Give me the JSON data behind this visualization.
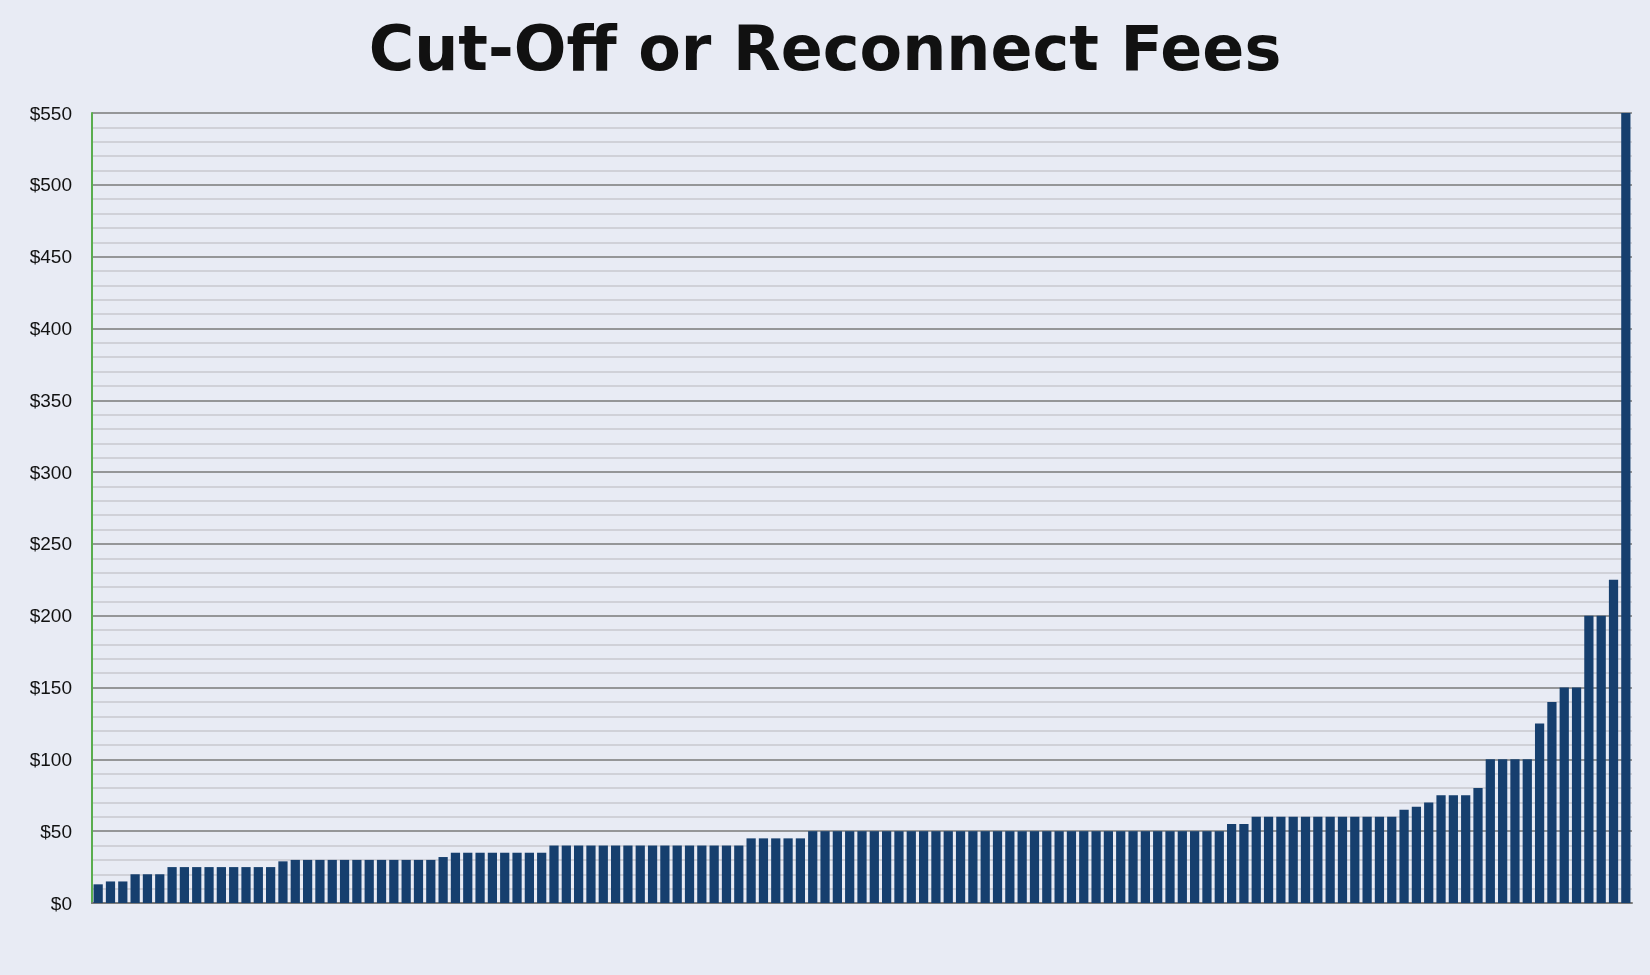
{
  "chart_data": {
    "type": "bar",
    "title": "Cut-Off or Reconnect Fees",
    "categories": [
      null,
      null,
      null,
      null,
      null,
      null,
      null,
      null,
      null,
      null,
      null,
      null,
      null,
      null,
      null,
      null,
      null,
      null,
      null,
      null,
      null,
      null,
      null,
      null,
      null,
      null,
      null,
      null,
      null,
      null,
      null,
      null,
      null,
      null,
      null,
      null,
      null,
      null,
      null,
      null,
      null,
      null,
      null,
      null,
      null,
      null,
      null,
      null,
      null,
      null,
      null,
      null,
      null,
      null,
      null,
      null,
      null,
      null,
      null,
      null,
      null,
      null,
      null,
      null,
      null,
      null,
      null,
      null,
      null,
      null,
      null,
      null,
      null,
      null,
      null,
      null,
      null,
      null,
      null,
      null,
      null,
      null,
      null,
      null,
      null,
      null,
      null,
      null,
      null,
      null,
      null,
      null,
      null,
      null,
      null,
      null,
      null,
      null,
      null,
      null,
      null,
      null,
      null,
      null,
      null,
      null,
      null,
      null,
      null,
      null,
      null,
      null,
      null,
      null,
      null,
      null,
      null,
      null,
      null,
      null,
      null,
      null,
      null,
      null,
      null
    ],
    "values": [
      13,
      15,
      15,
      20,
      20,
      20,
      25,
      25,
      25,
      25,
      25,
      25,
      25,
      25,
      25,
      29,
      30,
      30,
      30,
      30,
      30,
      30,
      30,
      30,
      30,
      30,
      30,
      30,
      32,
      35,
      35,
      35,
      35,
      35,
      35,
      35,
      35,
      40,
      40,
      40,
      40,
      40,
      40,
      40,
      40,
      40,
      40,
      40,
      40,
      40,
      40,
      40,
      40,
      45,
      45,
      45,
      45,
      45,
      50,
      50,
      50,
      50,
      50,
      50,
      50,
      50,
      50,
      50,
      50,
      50,
      50,
      50,
      50,
      50,
      50,
      50,
      50,
      50,
      50,
      50,
      50,
      50,
      50,
      50,
      50,
      50,
      50,
      50,
      50,
      50,
      50,
      50,
      55,
      55,
      60,
      60,
      60,
      60,
      60,
      60,
      60,
      60,
      60,
      60,
      60,
      60,
      65,
      67,
      70,
      75,
      75,
      75,
      80,
      100,
      100,
      100,
      100,
      125,
      140,
      150,
      150,
      200,
      200,
      225,
      550
    ],
    "color": "#163f6e",
    "ylim": [
      0,
      550
    ],
    "yticks": [
      {
        "value": 0,
        "label": "$0"
      },
      {
        "value": 10,
        "label": null
      },
      {
        "value": 20,
        "label": null
      },
      {
        "value": 30,
        "label": null
      },
      {
        "value": 40,
        "label": null
      },
      {
        "value": 50,
        "label": "$50"
      },
      {
        "value": 60,
        "label": null
      },
      {
        "value": 70,
        "label": null
      },
      {
        "value": 80,
        "label": null
      },
      {
        "value": 90,
        "label": null
      },
      {
        "value": 100,
        "label": "$100"
      },
      {
        "value": 110,
        "label": null
      },
      {
        "value": 120,
        "label": null
      },
      {
        "value": 130,
        "label": null
      },
      {
        "value": 140,
        "label": null
      },
      {
        "value": 150,
        "label": "$150"
      },
      {
        "value": 160,
        "label": null
      },
      {
        "value": 170,
        "label": null
      },
      {
        "value": 180,
        "label": null
      },
      {
        "value": 190,
        "label": null
      },
      {
        "value": 200,
        "label": "$200"
      },
      {
        "value": 210,
        "label": null
      },
      {
        "value": 220,
        "label": null
      },
      {
        "value": 230,
        "label": null
      },
      {
        "value": 240,
        "label": null
      },
      {
        "value": 250,
        "label": "$250"
      },
      {
        "value": 260,
        "label": null
      },
      {
        "value": 270,
        "label": null
      },
      {
        "value": 280,
        "label": null
      },
      {
        "value": 290,
        "label": null
      },
      {
        "value": 300,
        "label": "$300"
      },
      {
        "value": 310,
        "label": null
      },
      {
        "value": 320,
        "label": null
      },
      {
        "value": 330,
        "label": null
      },
      {
        "value": 340,
        "label": null
      },
      {
        "value": 350,
        "label": "$350"
      },
      {
        "value": 360,
        "label": null
      },
      {
        "value": 370,
        "label": null
      },
      {
        "value": 380,
        "label": null
      },
      {
        "value": 390,
        "label": null
      },
      {
        "value": 400,
        "label": "$400"
      },
      {
        "value": 410,
        "label": null
      },
      {
        "value": 420,
        "label": null
      },
      {
        "value": 430,
        "label": null
      },
      {
        "value": 440,
        "label": null
      },
      {
        "value": 450,
        "label": "$450"
      },
      {
        "value": 460,
        "label": null
      },
      {
        "value": 470,
        "label": null
      },
      {
        "value": 480,
        "label": null
      },
      {
        "value": 490,
        "label": null
      },
      {
        "value": 500,
        "label": "$500"
      },
      {
        "value": 510,
        "label": null
      },
      {
        "value": 520,
        "label": null
      },
      {
        "value": 530,
        "label": null
      },
      {
        "value": 540,
        "label": null
      },
      {
        "value": 550,
        "label": "$550"
      }
    ],
    "grid": true
  }
}
